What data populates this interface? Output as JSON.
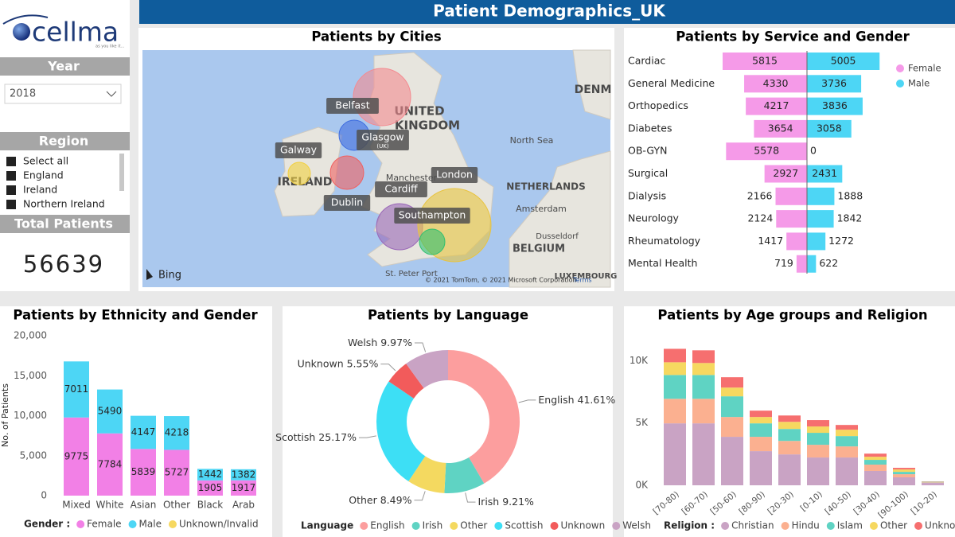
{
  "header": {
    "title": "Patient Demographics_UK"
  },
  "logo": {
    "name": "cellma",
    "tagline": "as you like it..."
  },
  "filters": {
    "year_label": "Year",
    "year_value": "2018",
    "region_label": "Region",
    "regions": [
      "Select all",
      "England",
      "Ireland",
      "Northern Ireland"
    ],
    "total_label": "Total Patients",
    "total_value": 56639
  },
  "map": {
    "title": "Patients by Cities",
    "cities": [
      "Belfast",
      "Glasgow",
      "Galway",
      "Dublin",
      "London",
      "Cardiff",
      "Southampton"
    ],
    "city_note": "(UK)",
    "places": [
      "UNITED",
      "KINGDOM",
      "IRELAND",
      "North Sea",
      "NETHERLANDS",
      "Amsterdam",
      "BELGIUM",
      "LUXEMBOURG",
      "Manchester",
      "St. Peter Port",
      "DENM",
      "Dusseldorf"
    ],
    "provider": "Bing",
    "attribution": "© 2021 TomTom, © 2021 Microsoft Corporation",
    "terms": "Terms"
  },
  "chart_data": [
    {
      "type": "diverging_bar",
      "title": "Patients by Service and Gender",
      "categories": [
        "Cardiac",
        "General Medicine",
        "Orthopedics",
        "Diabetes",
        "OB-GYN",
        "Surgical",
        "Dialysis",
        "Neurology",
        "Rheumatology",
        "Mental Health"
      ],
      "series": [
        {
          "name": "Female",
          "color": "#f59ae8",
          "values": [
            5815,
            4330,
            4217,
            3654,
            5578,
            2927,
            2166,
            2124,
            1417,
            719
          ]
        },
        {
          "name": "Male",
          "color": "#4dd6f5",
          "values": [
            5005,
            3736,
            3836,
            3058,
            0,
            2431,
            1888,
            1842,
            1272,
            622
          ]
        }
      ],
      "legend": "right"
    },
    {
      "type": "stacked_bar",
      "title": "Patients by Ethnicity and Gender",
      "ylabel": "No. of Patients",
      "legend_title": "Gender :",
      "categories": [
        "Mixed",
        "White",
        "Asian",
        "Other",
        "Black",
        "Arab"
      ],
      "series": [
        {
          "name": "Female",
          "color": "#f280e6",
          "values": [
            9775,
            7784,
            5839,
            5727,
            1905,
            1917
          ]
        },
        {
          "name": "Male",
          "color": "#4dd6f5",
          "values": [
            7011,
            5490,
            4147,
            4218,
            1442,
            1382
          ]
        },
        {
          "name": "Unknown/Invalid",
          "color": "#f6d860",
          "values": [
            0,
            0,
            0,
            0,
            0,
            0
          ]
        }
      ],
      "ylim": [
        0,
        20000
      ],
      "yticks": [
        0,
        {
          "value": 5000,
          "label": "5,000"
        },
        {
          "value": 10000,
          "label": "10,000"
        },
        {
          "value": 15000,
          "label": "15,000"
        },
        {
          "value": 20000,
          "label": "20,000"
        }
      ],
      "data_labels": true
    },
    {
      "type": "donut",
      "title": "Patients by Language",
      "legend_title": "Language",
      "categories": [
        "English",
        "Irish",
        "Other",
        "Scottish",
        "Unknown",
        "Welsh"
      ],
      "values": [
        41.61,
        9.21,
        8.49,
        25.17,
        5.55,
        9.97
      ],
      "value_labels": [
        "41.61%",
        "9.21%",
        "8.49%",
        "25.17%",
        "5.55%",
        "9.97%"
      ],
      "colors": [
        "#fc9e9e",
        "#5fd3c3",
        "#f4d960",
        "#3ddff5",
        "#f25b5b",
        "#c9a3c4"
      ]
    },
    {
      "type": "stacked_bar",
      "title": "Patients by Age groups and Religion",
      "legend_title": "Religion :",
      "categories": [
        "[70-80)",
        "[60-70)",
        "[50-60)",
        "[80-90)",
        "[20-30)",
        "[0-10)",
        "[40-50)",
        "[30-40)",
        "[90-100)",
        "[10-20)"
      ],
      "series": [
        {
          "name": "Christian",
          "color": "#c9a3c4",
          "values": [
            4970,
            4970,
            3890,
            2740,
            2480,
            2230,
            2230,
            1150,
            640,
            190
          ]
        },
        {
          "name": "Hindu",
          "color": "#fbb090",
          "values": [
            1970,
            1970,
            1590,
            1150,
            1080,
            1020,
            890,
            510,
            250,
            50
          ]
        },
        {
          "name": "Islam",
          "color": "#5fd3c3",
          "values": [
            1910,
            1910,
            1660,
            1080,
            960,
            960,
            830,
            380,
            190,
            40
          ]
        },
        {
          "name": "Other",
          "color": "#f6d860",
          "values": [
            1020,
            960,
            700,
            510,
            570,
            510,
            510,
            250,
            190,
            20
          ]
        },
        {
          "name": "Unknown",
          "color": "#f66f6f",
          "values": [
            1080,
            1020,
            830,
            510,
            510,
            510,
            380,
            250,
            130,
            20
          ]
        }
      ],
      "ylim": [
        0,
        12000
      ],
      "yticks": [
        {
          "value": 0,
          "label": "0K"
        },
        {
          "value": 5000,
          "label": "5K"
        },
        {
          "value": 10000,
          "label": "10K"
        }
      ],
      "rotate_x_labels": true,
      "data_labels": false
    }
  ]
}
